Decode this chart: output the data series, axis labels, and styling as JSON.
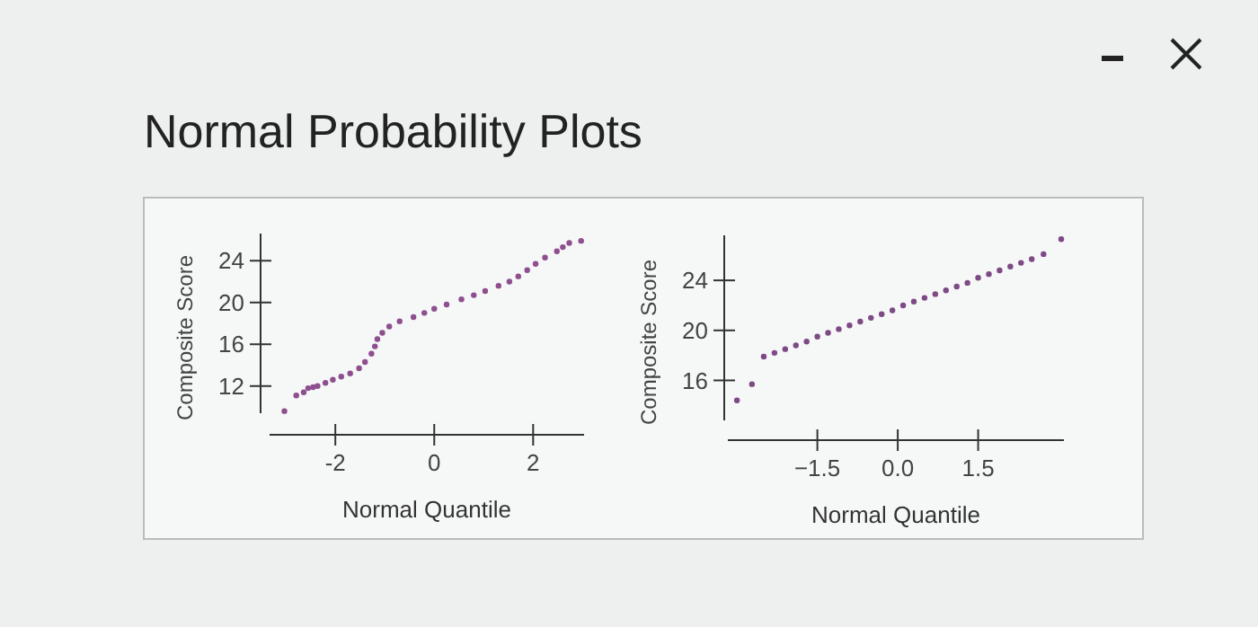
{
  "chart_data": [
    {
      "type": "scatter",
      "title": "Normal Probability Plots",
      "xlabel": "Normal Quantile",
      "ylabel": "Composite Score",
      "xlim": [
        -3.33,
        3.03
      ],
      "ylim": [
        9.4,
        26.6
      ],
      "xticks": [
        {
          "value": -2,
          "label": "-2"
        },
        0,
        2
      ],
      "yticks": [
        12,
        16,
        20,
        24
      ],
      "marker": "circle",
      "series": [
        {
          "color": "#8e4f8f",
          "x": [
            -3.03,
            -2.79,
            -2.64,
            -2.55,
            -2.45,
            -2.36,
            -2.2,
            -2.05,
            -1.88,
            -1.7,
            -1.52,
            -1.4,
            -1.27,
            -1.2,
            -1.15,
            -1.05,
            -0.91,
            -0.7,
            -0.42,
            -0.2,
            0,
            0.25,
            0.55,
            0.8,
            1.03,
            1.3,
            1.52,
            1.7,
            1.88,
            2.05,
            2.24,
            2.48,
            2.6,
            2.73,
            2.97
          ],
          "values": [
            9.6,
            11.1,
            11.4,
            11.8,
            11.9,
            12.0,
            12.3,
            12.6,
            12.9,
            13.2,
            13.7,
            14.3,
            15.1,
            15.8,
            16.5,
            17.1,
            17.7,
            18.2,
            18.6,
            19.0,
            19.4,
            19.8,
            20.3,
            20.7,
            21.1,
            21.6,
            22.0,
            22.5,
            23.1,
            23.7,
            24.3,
            24.9,
            25.3,
            25.7,
            25.9
          ]
        }
      ]
    },
    {
      "type": "scatter",
      "xlabel": "Normal Quantile",
      "ylabel": "Composite Score",
      "xlim": [
        -3.17,
        3.1
      ],
      "ylim": [
        12.8,
        27.6
      ],
      "xticks": [
        {
          "value": -1.5,
          "label": "−1.5"
        },
        {
          "value": 0,
          "label": "0.0"
        },
        1.5
      ],
      "yticks": [
        16,
        20,
        24
      ],
      "marker": "circle",
      "series": [
        {
          "color": "#7e4a86",
          "x": [
            -3.0,
            -2.72,
            -2.5,
            -2.3,
            -2.1,
            -1.9,
            -1.7,
            -1.5,
            -1.3,
            -1.1,
            -0.9,
            -0.7,
            -0.5,
            -0.3,
            -0.1,
            0.1,
            0.3,
            0.5,
            0.7,
            0.9,
            1.1,
            1.3,
            1.5,
            1.7,
            1.9,
            2.1,
            2.3,
            2.5,
            2.72,
            3.05
          ],
          "values": [
            14.4,
            15.7,
            17.9,
            18.2,
            18.5,
            18.8,
            19.1,
            19.5,
            19.8,
            20.1,
            20.4,
            20.7,
            21.0,
            21.3,
            21.6,
            22.0,
            22.3,
            22.6,
            22.9,
            23.2,
            23.5,
            23.8,
            24.2,
            24.5,
            24.8,
            25.1,
            25.4,
            25.7,
            26.1,
            27.3
          ]
        }
      ]
    }
  ]
}
